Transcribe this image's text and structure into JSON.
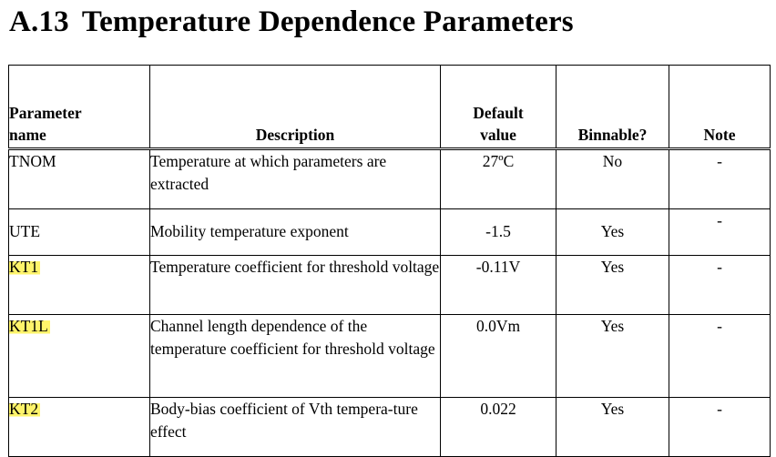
{
  "section": {
    "number": "A.13",
    "title": "Temperature Dependence Parameters"
  },
  "table": {
    "headers": {
      "name_line1": "Parameter",
      "name_line2": "name",
      "description": "Description",
      "default_line1": "Default",
      "default_line2": "value",
      "binnable": "Binnable?",
      "note": "Note"
    },
    "rows": [
      {
        "name": "TNOM",
        "description": "Temperature at which parameters are extracted",
        "default": "27ºC",
        "binnable": "No",
        "note": "-",
        "highlighted": false
      },
      {
        "name": "UTE",
        "description": "Mobility temperature exponent",
        "default": "-1.5",
        "binnable": "Yes",
        "note": "-",
        "highlighted": false
      },
      {
        "name": "KT1",
        "description": "Temperature coefficient for threshold voltage",
        "default": "-0.11V",
        "binnable": "Yes",
        "note": "-",
        "highlighted": true
      },
      {
        "name": "KT1L",
        "description": "Channel length dependence of the temperature coefficient for threshold voltage",
        "default": "0.0Vm",
        "binnable": "Yes",
        "note": "-",
        "highlighted": true
      },
      {
        "name": "KT2",
        "description": "Body-bias coefficient of Vth tempera-ture effect",
        "default": "0.022",
        "binnable": "Yes",
        "note": "-",
        "highlighted": true
      }
    ],
    "highlight_color": "#fff46b"
  }
}
